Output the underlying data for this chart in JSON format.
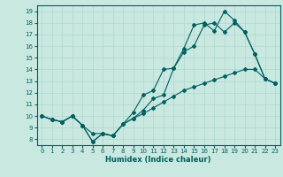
{
  "xlabel": "Humidex (Indice chaleur)",
  "bg_color": "#c8e8e0",
  "line_color": "#006060",
  "grid_color": "#b0d8d0",
  "xlim": [
    -0.5,
    23.5
  ],
  "ylim": [
    7.5,
    19.5
  ],
  "xticks": [
    0,
    1,
    2,
    3,
    4,
    5,
    6,
    7,
    8,
    9,
    10,
    11,
    12,
    13,
    14,
    15,
    16,
    17,
    18,
    19,
    20,
    21,
    22,
    23
  ],
  "yticks": [
    8,
    9,
    10,
    11,
    12,
    13,
    14,
    15,
    16,
    17,
    18,
    19
  ],
  "line1_x": [
    0,
    1,
    2,
    3,
    4,
    5,
    6,
    7,
    8,
    9,
    10,
    11,
    12,
    13,
    14,
    15,
    16,
    17,
    18,
    19,
    20,
    21,
    22,
    23
  ],
  "line1_y": [
    10,
    9.7,
    9.5,
    10.0,
    9.2,
    8.5,
    8.5,
    8.3,
    9.3,
    10.3,
    11.8,
    12.2,
    14.0,
    14.1,
    15.5,
    16.0,
    17.8,
    18.0,
    17.2,
    18.0,
    17.2,
    15.3,
    13.2,
    12.8
  ],
  "line2_x": [
    0,
    1,
    2,
    3,
    4,
    5,
    6,
    7,
    8,
    9,
    10,
    11,
    12,
    13,
    14,
    15,
    16,
    17,
    18,
    19,
    20,
    21,
    22,
    23
  ],
  "line2_y": [
    10,
    9.7,
    9.5,
    10.0,
    9.2,
    7.8,
    8.5,
    8.3,
    9.3,
    9.8,
    10.5,
    11.5,
    11.8,
    14.1,
    15.8,
    17.8,
    18.0,
    17.3,
    19.0,
    18.2,
    17.2,
    15.3,
    13.2,
    12.8
  ],
  "line3_x": [
    0,
    1,
    2,
    3,
    4,
    5,
    6,
    7,
    8,
    9,
    10,
    11,
    12,
    13,
    14,
    15,
    16,
    17,
    18,
    19,
    20,
    21,
    22,
    23
  ],
  "line3_y": [
    10,
    9.7,
    9.5,
    10.0,
    9.2,
    7.8,
    8.5,
    8.3,
    9.3,
    9.8,
    10.2,
    10.7,
    11.2,
    11.7,
    12.2,
    12.5,
    12.8,
    13.1,
    13.4,
    13.7,
    14.0,
    14.0,
    13.2,
    12.8
  ]
}
